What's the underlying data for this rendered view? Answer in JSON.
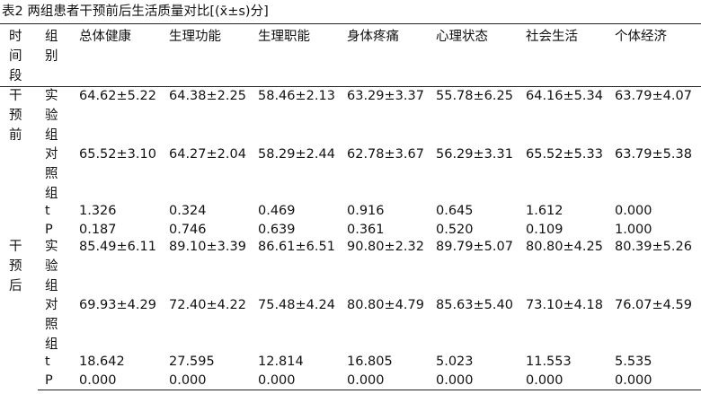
{
  "header": {
    "title": "表2 两组患者干预前后生活质量对比[(x̄±s)分]"
  },
  "table": {
    "columns": [
      "时间段",
      "组别",
      "总体健康",
      "生理功能",
      "生理职能",
      "身体疼痛",
      "心理状态",
      "社会生活",
      "个体经济"
    ],
    "sections": [
      {
        "period": "干预前",
        "rows": [
          {
            "group": "实验组",
            "values": [
              "64.62±5.22",
              "64.38±2.25",
              "58.46±2.13",
              "63.29±3.37",
              "55.78±6.25",
              "64.16±5.34",
              "63.79±4.07"
            ]
          },
          {
            "group": "对照组",
            "values": [
              "65.52±3.10",
              "64.27±2.04",
              "58.29±2.44",
              "62.78±3.67",
              "56.29±3.31",
              "65.52±5.33",
              "63.79±5.38"
            ]
          },
          {
            "group": "t",
            "values": [
              "1.326",
              "0.324",
              "0.469",
              "0.916",
              "0.645",
              "1.612",
              "0.000"
            ]
          },
          {
            "group": "P",
            "values": [
              "0.187",
              "0.746",
              "0.639",
              "0.361",
              "0.520",
              "0.109",
              "1.000"
            ]
          }
        ]
      },
      {
        "period": "干预后",
        "rows": [
          {
            "group": "实验组",
            "values": [
              "85.49±6.11",
              "89.10±3.39",
              "86.61±6.51",
              "90.80±2.32",
              "89.79±5.07",
              "80.80±4.25",
              "80.39±5.26"
            ]
          },
          {
            "group": "对照组",
            "values": [
              "69.93±4.29",
              "72.40±4.22",
              "75.48±4.24",
              "80.80±4.79",
              "85.63±5.40",
              "73.10±4.18",
              "76.07±4.59"
            ]
          },
          {
            "group": "t",
            "values": [
              "18.642",
              "27.595",
              "12.814",
              "16.805",
              "5.023",
              "11.553",
              "5.535"
            ]
          },
          {
            "group": "P",
            "values": [
              "0.000",
              "0.000",
              "0.000",
              "0.000",
              "0.000",
              "0.000",
              "0.000"
            ]
          }
        ]
      }
    ]
  }
}
